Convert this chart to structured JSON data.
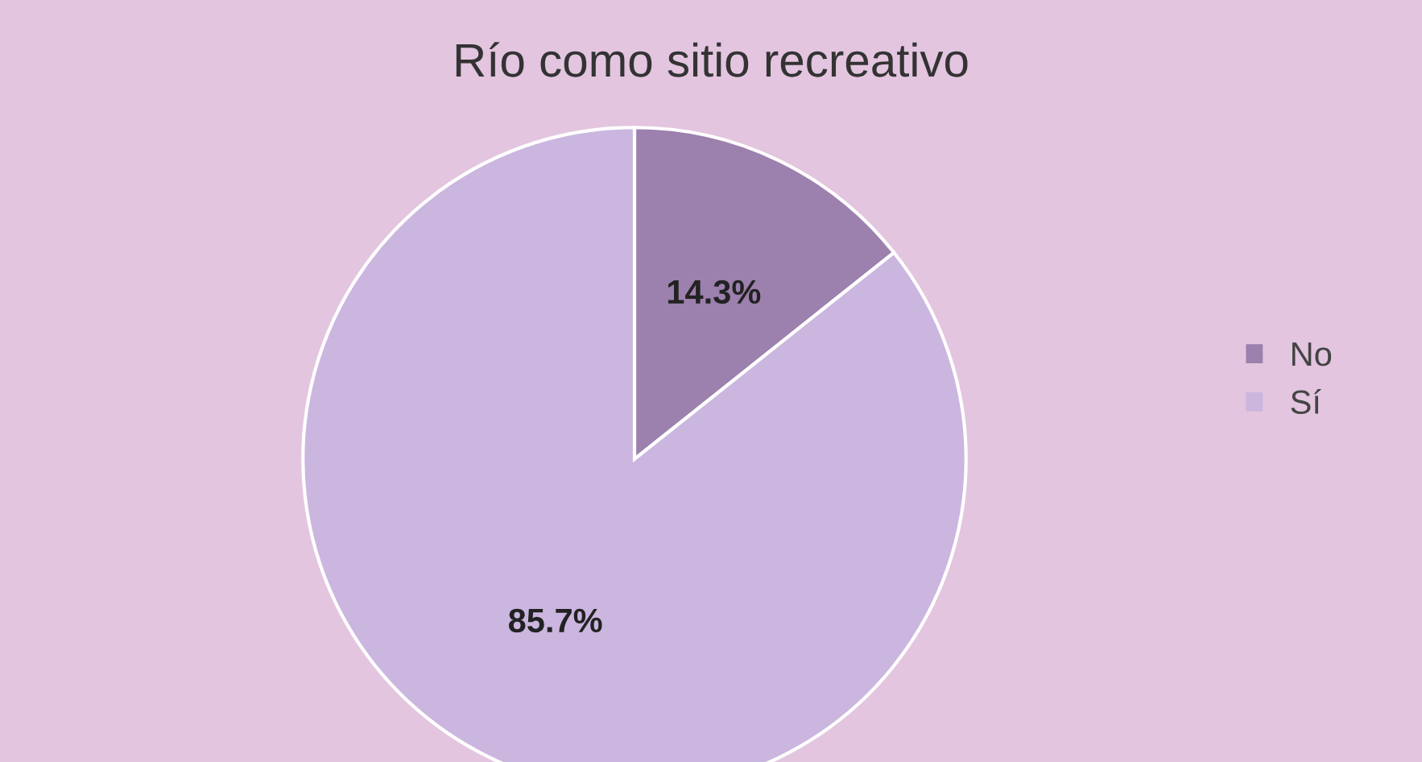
{
  "chart_data": {
    "type": "pie",
    "title": "Río como sitio recreativo",
    "categories": [
      "No",
      "Sí"
    ],
    "values": [
      14.3,
      85.7
    ],
    "colors": [
      "#9c80ad",
      "#cbb6df"
    ],
    "value_labels": [
      "14.3%",
      "85.7%"
    ],
    "legend": "right"
  }
}
